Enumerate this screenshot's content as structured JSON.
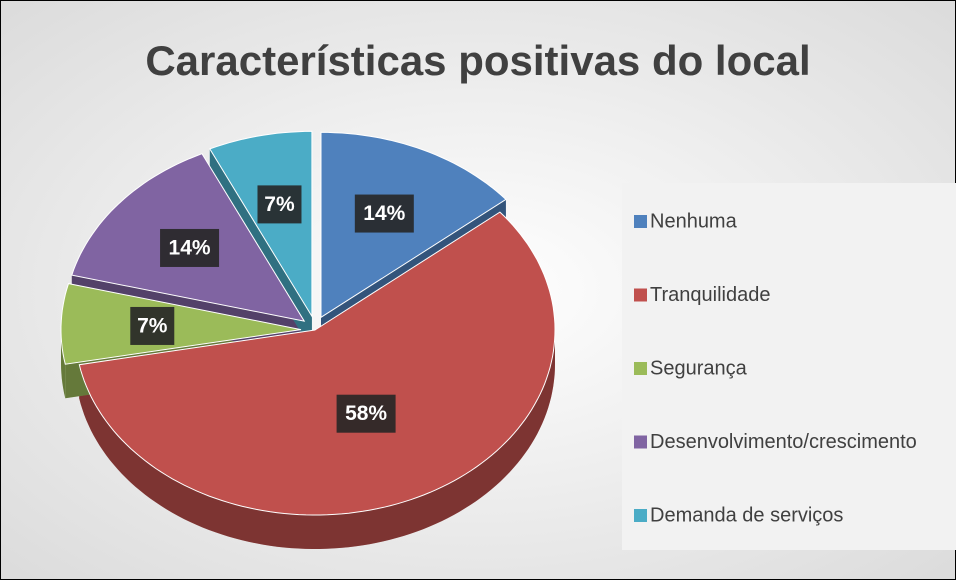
{
  "chart_data": {
    "type": "pie",
    "title": "Características positivas do local",
    "categories": [
      "Nenhuma",
      "Tranquilidade",
      "Segurança",
      "Desenvolvimento/crescimento",
      "Demanda de serviços"
    ],
    "values": [
      14,
      58,
      7,
      14,
      7
    ],
    "value_labels": [
      "14%",
      "58%",
      "7%",
      "14%",
      "7%"
    ],
    "colors": [
      "#4f81bd",
      "#c0504d",
      "#9bbb59",
      "#8064a2",
      "#4bacc6"
    ],
    "legend": "right"
  }
}
